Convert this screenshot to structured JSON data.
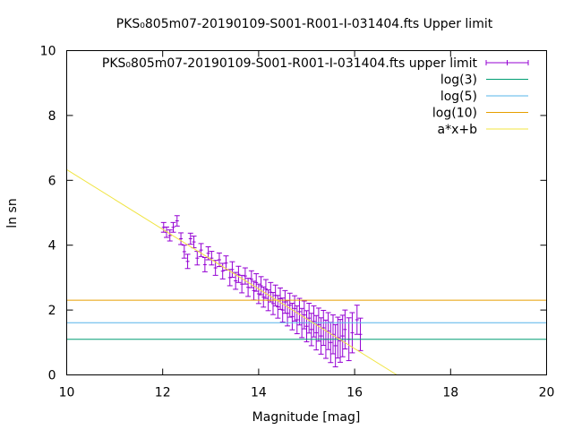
{
  "chart_data": {
    "type": "scatter",
    "title": "PKS₀805m07-20190109-S001-R001-I-031404.fts Upper limit",
    "xlabel": "Magnitude [mag]",
    "ylabel": "ln sn",
    "xlim": [
      10,
      20
    ],
    "ylim": [
      0,
      10
    ],
    "xticks": [
      10,
      12,
      14,
      16,
      18,
      20
    ],
    "yticks": [
      0,
      2,
      4,
      6,
      8,
      10
    ],
    "xtick_labels": [
      "10",
      "12",
      "14",
      "16",
      "18",
      "20"
    ],
    "ytick_labels": [
      "0",
      "2",
      "4",
      "6",
      "8",
      "10"
    ],
    "legend_position": "top-right",
    "grid": false,
    "series": [
      {
        "name": "PKS₀805m07-20190109-S001-R001-I-031404.fts upper limit",
        "kind": "errorbar-points",
        "color": "#9400d3",
        "points": [
          [
            12.02,
            4.55,
            0.15
          ],
          [
            12.08,
            4.4,
            0.16
          ],
          [
            12.15,
            4.3,
            0.17
          ],
          [
            12.22,
            4.55,
            0.15
          ],
          [
            12.3,
            4.75,
            0.16
          ],
          [
            12.38,
            4.2,
            0.18
          ],
          [
            12.45,
            3.8,
            0.2
          ],
          [
            12.52,
            3.5,
            0.22
          ],
          [
            12.58,
            4.2,
            0.17
          ],
          [
            12.65,
            4.1,
            0.18
          ],
          [
            12.72,
            3.6,
            0.21
          ],
          [
            12.8,
            3.85,
            0.2
          ],
          [
            12.88,
            3.4,
            0.22
          ],
          [
            12.95,
            3.75,
            0.2
          ],
          [
            13.02,
            3.6,
            0.21
          ],
          [
            13.1,
            3.3,
            0.23
          ],
          [
            13.18,
            3.55,
            0.21
          ],
          [
            13.25,
            3.2,
            0.24
          ],
          [
            13.32,
            3.45,
            0.22
          ],
          [
            13.4,
            3.0,
            0.25
          ],
          [
            13.45,
            3.25,
            0.24
          ],
          [
            13.52,
            2.9,
            0.26
          ],
          [
            13.58,
            3.1,
            0.25
          ],
          [
            13.65,
            2.8,
            0.27
          ],
          [
            13.72,
            3.05,
            0.25
          ],
          [
            13.78,
            2.7,
            0.28
          ],
          [
            13.85,
            2.95,
            0.26
          ],
          [
            13.9,
            2.6,
            0.29
          ],
          [
            13.95,
            2.85,
            0.27
          ],
          [
            14.0,
            2.5,
            0.3
          ],
          [
            14.05,
            2.75,
            0.28
          ],
          [
            14.1,
            2.4,
            0.31
          ],
          [
            14.15,
            2.65,
            0.29
          ],
          [
            14.2,
            2.3,
            0.32
          ],
          [
            14.25,
            2.55,
            0.3
          ],
          [
            14.3,
            2.2,
            0.34
          ],
          [
            14.35,
            2.45,
            0.32
          ],
          [
            14.4,
            2.1,
            0.35
          ],
          [
            14.45,
            2.35,
            0.33
          ],
          [
            14.5,
            2.0,
            0.37
          ],
          [
            14.55,
            2.25,
            0.35
          ],
          [
            14.6,
            1.9,
            0.39
          ],
          [
            14.65,
            2.15,
            0.37
          ],
          [
            14.7,
            1.8,
            0.41
          ],
          [
            14.75,
            2.05,
            0.39
          ],
          [
            14.8,
            1.7,
            0.43
          ],
          [
            14.85,
            1.95,
            0.41
          ],
          [
            14.9,
            1.6,
            0.45
          ],
          [
            14.95,
            1.85,
            0.43
          ],
          [
            15.0,
            1.5,
            0.48
          ],
          [
            15.05,
            1.75,
            0.46
          ],
          [
            15.1,
            1.4,
            0.5
          ],
          [
            15.15,
            1.65,
            0.48
          ],
          [
            15.2,
            1.3,
            0.53
          ],
          [
            15.25,
            1.55,
            0.51
          ],
          [
            15.3,
            1.2,
            0.56
          ],
          [
            15.35,
            1.45,
            0.54
          ],
          [
            15.4,
            1.1,
            0.59
          ],
          [
            15.45,
            1.35,
            0.57
          ],
          [
            15.5,
            1.0,
            0.62
          ],
          [
            15.55,
            1.25,
            0.6
          ],
          [
            15.6,
            0.9,
            0.65
          ],
          [
            15.65,
            1.15,
            0.63
          ],
          [
            15.7,
            1.05,
            0.66
          ],
          [
            15.75,
            1.2,
            0.64
          ],
          [
            15.8,
            1.4,
            0.6
          ],
          [
            15.88,
            1.1,
            0.66
          ],
          [
            15.95,
            1.3,
            0.62
          ],
          [
            16.05,
            1.7,
            0.45
          ],
          [
            16.12,
            1.25,
            0.5
          ]
        ]
      },
      {
        "name": "log(3)",
        "kind": "hline",
        "y": 1.0986,
        "color": "#009e73"
      },
      {
        "name": "log(5)",
        "kind": "hline",
        "y": 1.6094,
        "color": "#56b4e9"
      },
      {
        "name": "log(10)",
        "kind": "hline",
        "y": 2.3026,
        "color": "#e69f00"
      },
      {
        "name": "a*x+b",
        "kind": "line",
        "color": "#f0e442",
        "x": [
          10,
          16.88
        ],
        "y": [
          6.33,
          0
        ]
      }
    ]
  }
}
